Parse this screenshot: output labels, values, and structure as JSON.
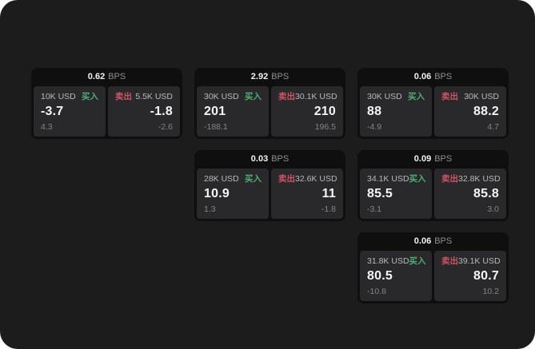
{
  "page": {
    "background_outside": "#ffffff",
    "background": "#1c1c1d",
    "card_background": "#0f0f10",
    "panel_background": "#29292b",
    "buy_color": "#4caf73",
    "sell_color": "#d05463"
  },
  "labels": {
    "bps_unit": "BPS",
    "buy": "买入",
    "sell": "卖出"
  },
  "cards": [
    {
      "bps": "0.62",
      "buy": {
        "amount": "10K USD",
        "price": "-3.7",
        "secondary": "4.3"
      },
      "sell": {
        "amount": "5.5K USD",
        "price": "-1.8",
        "secondary": "-2.6"
      }
    },
    {
      "bps": "2.92",
      "buy": {
        "amount": "30K USD",
        "price": "201",
        "secondary": "-188.1"
      },
      "sell": {
        "amount": "30.1K USD",
        "price": "210",
        "secondary": "196.5"
      }
    },
    {
      "bps": "0.06",
      "buy": {
        "amount": "30K USD",
        "price": "88",
        "secondary": "-4.9"
      },
      "sell": {
        "amount": "30K USD",
        "price": "88.2",
        "secondary": "4.7"
      }
    },
    {
      "bps": "0.03",
      "buy": {
        "amount": "28K USD",
        "price": "10.9",
        "secondary": "1.3"
      },
      "sell": {
        "amount": "32.6K USD",
        "price": "11",
        "secondary": "-1.8"
      }
    },
    {
      "bps": "0.09",
      "buy": {
        "amount": "34.1K USD",
        "price": "85.5",
        "secondary": "-3.1"
      },
      "sell": {
        "amount": "32.8K USD",
        "price": "85.8",
        "secondary": "3.0"
      }
    },
    {
      "bps": "0.06",
      "buy": {
        "amount": "31.8K USD",
        "price": "80.5",
        "secondary": "-10.8"
      },
      "sell": {
        "amount": "39.1K USD",
        "price": "80.7",
        "secondary": "10.2"
      }
    }
  ]
}
